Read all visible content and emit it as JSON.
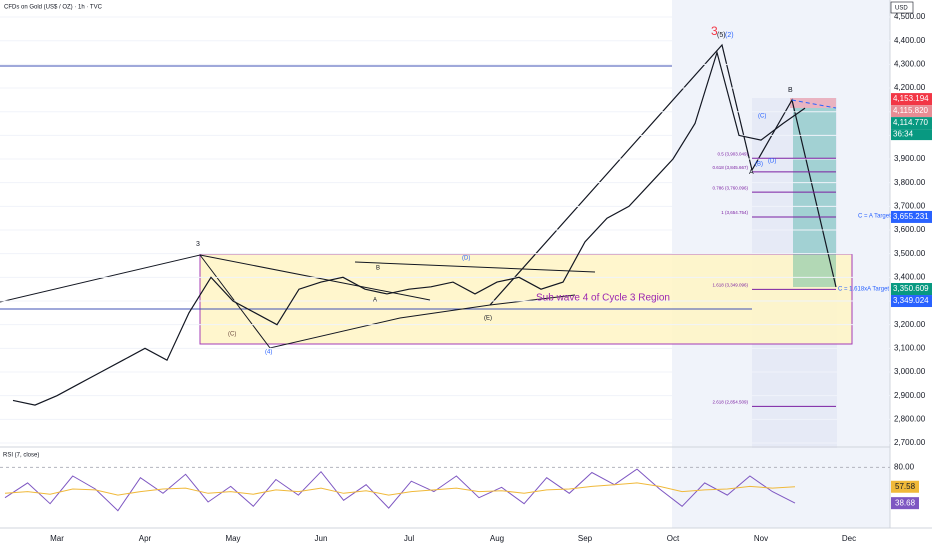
{
  "chart_data": [
    {
      "type": "line",
      "title": "CFDs on Gold (US$ / OZ) · 1h · TVC",
      "currency": "USD",
      "categories": [
        null,
        null,
        "Mar",
        null,
        null,
        null,
        "Apr",
        null,
        null,
        null,
        "May",
        null,
        null,
        null,
        "Jun",
        null,
        null,
        null,
        "Jul",
        null,
        null,
        null,
        "Aug",
        null,
        null,
        null,
        "Sep",
        null,
        null,
        null,
        "Oct",
        null,
        null,
        null,
        "Nov",
        null,
        null,
        null,
        "Dec"
      ],
      "series": [
        {
          "color": "#131722",
          "values": [
            2880,
            2860,
            2900,
            2950,
            3000,
            3050,
            3100,
            3050,
            3250,
            3400,
            3300,
            3250,
            3200,
            3350,
            3380,
            3400,
            3350,
            3330,
            3350,
            3360,
            3380,
            3330,
            3380,
            3400,
            3350,
            3380,
            3550,
            3650,
            3700,
            3800,
            3900,
            4050,
            4350,
            4000,
            3980,
            4050,
            4115,
            null,
            null
          ]
        }
      ],
      "ylim": [
        2683,
        4572
      ],
      "yticks": [
        {
          "value": 2700,
          "label": "2,700.00"
        },
        {
          "value": 2800,
          "label": "2,800.00"
        },
        {
          "value": 2900,
          "label": "2,900.00"
        },
        {
          "value": 3000,
          "label": "3,000.00"
        },
        {
          "value": 3100,
          "label": "3,100.00"
        },
        {
          "value": 3200,
          "label": "3,200.00"
        },
        {
          "value": 3300,
          "label": "3,300.00"
        },
        {
          "value": 3400,
          "label": "3,400.00"
        },
        {
          "value": 3500,
          "label": "3,500.00"
        },
        {
          "value": 3600,
          "label": "3,600.00"
        },
        {
          "value": 3700,
          "label": "3,700.00"
        },
        {
          "value": 3800,
          "label": "3,800.00"
        },
        {
          "value": 3900,
          "label": "3,900.00"
        },
        {
          "value": 4000,
          "label": "4,000.00"
        },
        {
          "value": 4100,
          "label": "4,100.00"
        },
        {
          "value": 4200,
          "label": "4,200.00"
        },
        {
          "value": 4300,
          "label": "4,300.00"
        },
        {
          "value": 4400,
          "label": "4,400.00"
        },
        {
          "value": 4500,
          "label": "4,500.00"
        }
      ],
      "price_labels": [
        {
          "value": 4153.194,
          "label": "4,153.194",
          "color": "#f23645"
        },
        {
          "value": 4115.82,
          "label": "4,115.820",
          "color": "#e88c94"
        },
        {
          "value": 4114.77,
          "label": "4,114.770",
          "color": "#089981"
        },
        {
          "value": 3655.231,
          "label": "3,655.231",
          "color": "#2962ff"
        },
        {
          "value": 3350.609,
          "label": "3,350.609",
          "color": "#089981"
        },
        {
          "value": 3349.024,
          "label": "3,349.024",
          "color": "#2962ff"
        }
      ],
      "countdown": "36:34",
      "fib_levels": [
        {
          "value": 3903.049,
          "label": "0.5 (3,903.049)"
        },
        {
          "value": 3845.667,
          "label": "0.618 (3,845.667)"
        },
        {
          "value": 3760.096,
          "label": "0.786 (3,760.096)"
        },
        {
          "value": 3654.754,
          "label": "1 (3,654.754)"
        },
        {
          "value": 3349.096,
          "label": "1.618 (3,349.096)"
        },
        {
          "value": 2854.509,
          "label": "2.618 (2,854.509)"
        }
      ],
      "annotations": [
        "Sub wave 4 of Cycle 3 Region",
        "C = A Target",
        "C = 1.618xA Target"
      ],
      "wave_labels": [
        "3",
        "(5)",
        "(2)",
        "B",
        "A",
        "(B)",
        "(C)",
        "(D)",
        "3",
        "(4)",
        "(D)",
        "(E)",
        "(C)",
        "B",
        "A"
      ]
    },
    {
      "type": "line",
      "title": "RSI (7, close)",
      "series": [
        {
          "color": "#7e57c2",
          "values": [
            45,
            62,
            38,
            70,
            55,
            30,
            68,
            50,
            72,
            40,
            58,
            35,
            66,
            48,
            75,
            42,
            60,
            33,
            64,
            52,
            70,
            45,
            57,
            38,
            68,
            50,
            74,
            60,
            78,
            55,
            35,
            62,
            48,
            70,
            52,
            38.68
          ]
        },
        {
          "color": "#f0b93a",
          "values": [
            50,
            52,
            49,
            55,
            54,
            48,
            52,
            55,
            56,
            50,
            52,
            49,
            54,
            52,
            56,
            50,
            53,
            48,
            52,
            54,
            56,
            52,
            53,
            50,
            54,
            55,
            58,
            60,
            62,
            58,
            52,
            54,
            55,
            58,
            56,
            57.58
          ]
        }
      ],
      "ylim": [
        10,
        100
      ],
      "yticks": [
        {
          "value": 80,
          "label": "80.00"
        }
      ]
    }
  ]
}
